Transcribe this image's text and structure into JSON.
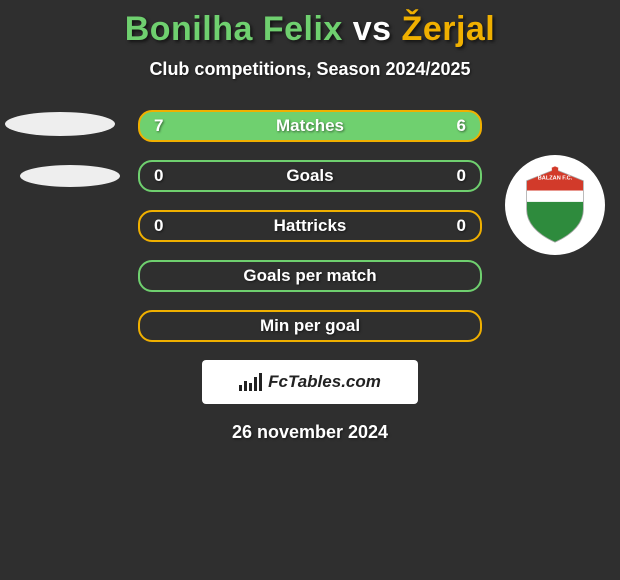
{
  "title": {
    "player1": "Bonilha Felix",
    "vs": "vs",
    "player2": "Žerjal",
    "player1_color": "#6fd06f",
    "vs_color": "#ffffff",
    "player2_color": "#f0b000"
  },
  "subtitle": "Club competitions, Season 2024/2025",
  "rows": [
    {
      "label": "Matches",
      "left": "7",
      "right": "6",
      "fill": "#6fd06f",
      "border": "#f0b000"
    },
    {
      "label": "Goals",
      "left": "0",
      "right": "0",
      "fill": "none",
      "border": "#6fd06f"
    },
    {
      "label": "Hattricks",
      "left": "0",
      "right": "0",
      "fill": "none",
      "border": "#f0b000"
    },
    {
      "label": "Goals per match",
      "left": "",
      "right": "",
      "fill": "none",
      "border": "#6fd06f"
    },
    {
      "label": "Min per goal",
      "left": "",
      "right": "",
      "fill": "none",
      "border": "#f0b000"
    }
  ],
  "attribution": "FcTables.com",
  "date": "26 november 2024",
  "logo": {
    "top_text": "BALZAN F.C.",
    "colors": {
      "crest_red": "#d23a2a",
      "crest_white": "#ffffff",
      "crest_green": "#2e8b3d",
      "outline": "#aaaaaa"
    }
  },
  "background_color": "#2f2f2f"
}
